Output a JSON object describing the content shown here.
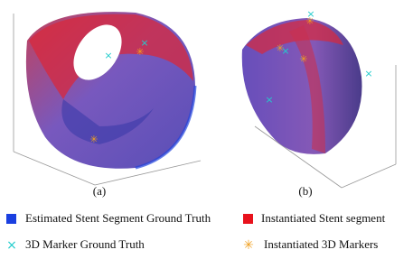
{
  "panels": [
    {
      "label": "(a)"
    },
    {
      "label": "(b)"
    }
  ],
  "legend": [
    {
      "label": "Estimated Stent Segment Ground Truth"
    },
    {
      "label": "Instantiated Stent segment"
    },
    {
      "label": "3D Marker Ground Truth"
    },
    {
      "label": "Instantiated 3D Markers"
    }
  ]
}
